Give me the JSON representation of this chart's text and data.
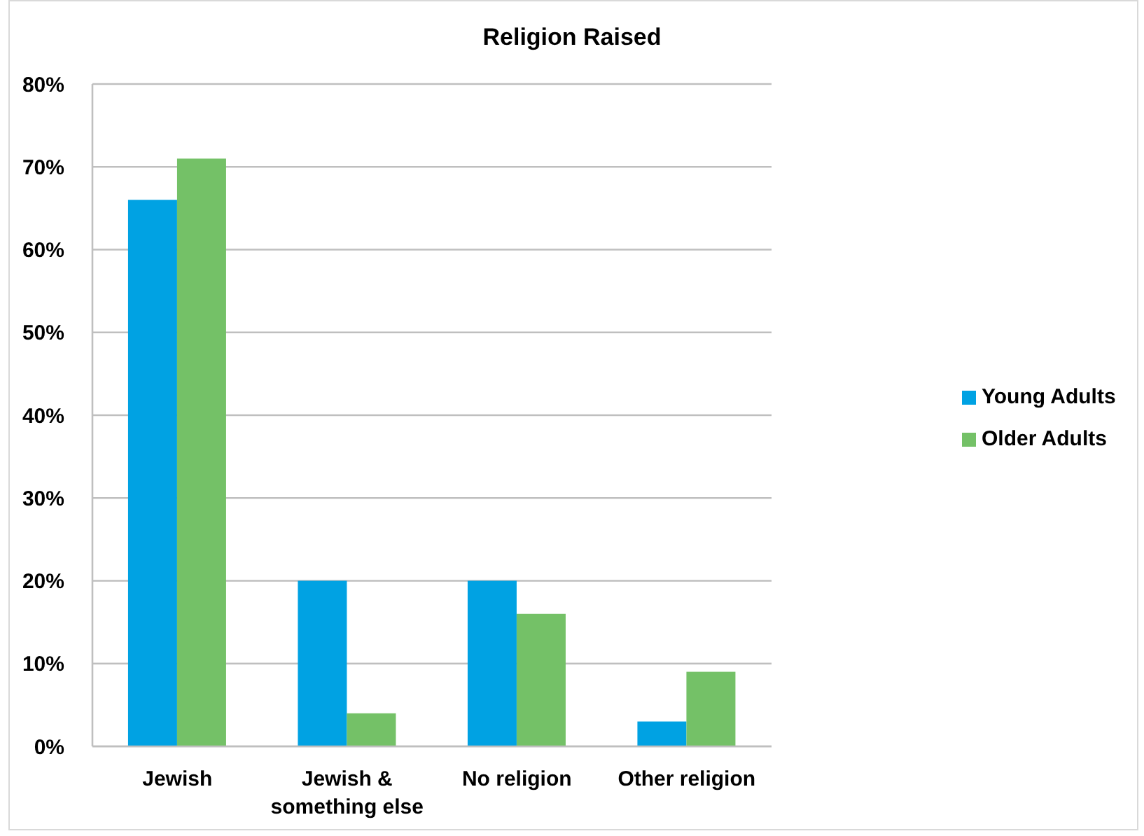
{
  "chart_data": {
    "type": "bar",
    "title": "Religion Raised",
    "categories": [
      "Jewish",
      "Jewish & something else",
      "No religion",
      "Other religion"
    ],
    "series": [
      {
        "name": "Young Adults",
        "color": "#00a2e3",
        "values": [
          66,
          20,
          20,
          3
        ]
      },
      {
        "name": "Older Adults",
        "color": "#74c167",
        "values": [
          71,
          4,
          16,
          9
        ]
      }
    ],
    "ylim": [
      0,
      80
    ],
    "yticks": [
      {
        "value": 0,
        "label": "0%"
      },
      {
        "value": 10,
        "label": "10%"
      },
      {
        "value": 20,
        "label": "20%"
      },
      {
        "value": 30,
        "label": "30%"
      },
      {
        "value": 40,
        "label": "40%"
      },
      {
        "value": 50,
        "label": "50%"
      },
      {
        "value": 60,
        "label": "60%"
      },
      {
        "value": 70,
        "label": "70%"
      },
      {
        "value": 80,
        "label": "80%"
      }
    ],
    "grid": "y",
    "legend": "right"
  }
}
